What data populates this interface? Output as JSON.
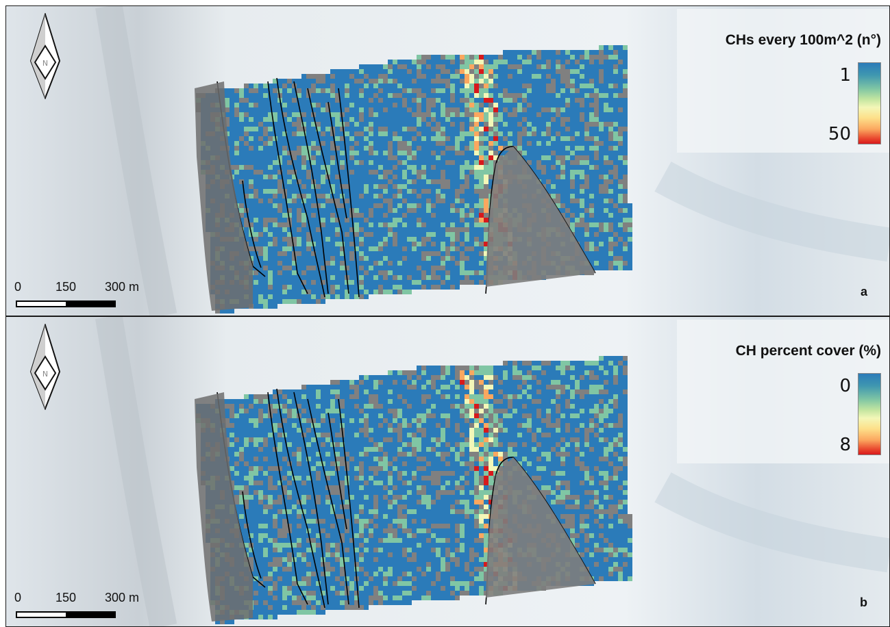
{
  "panels": [
    {
      "id": "a",
      "letter": "a",
      "legend_title": "CHs every 100m^2 (n°)",
      "legend_min": "1",
      "legend_max": "50",
      "scale_labels": [
        "0",
        "150",
        "300 m"
      ]
    },
    {
      "id": "b",
      "letter": "b",
      "legend_title": "CH percent cover (%)",
      "legend_min": "0",
      "legend_max": "8",
      "scale_labels": [
        "0",
        "150",
        "300 m"
      ]
    }
  ],
  "colors": {
    "low": "#2b7bb9",
    "mid_low": "#80c6a4",
    "mid": "#f3f7b8",
    "mid_high": "#fba75f",
    "high": "#d7191c",
    "rock": "#7f7f7f",
    "boundary": "#000000"
  },
  "icons": {
    "north_arrow": "north-arrow-icon"
  }
}
